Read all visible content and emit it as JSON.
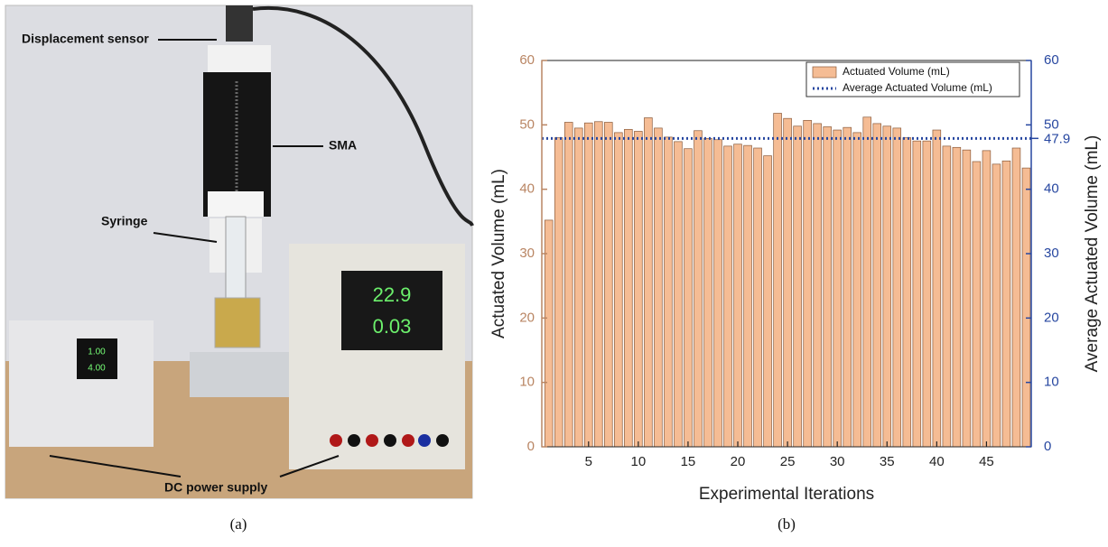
{
  "panel_a": {
    "labels": {
      "sensor": "Displacement sensor",
      "sma": "SMA",
      "syringe": "Syringe",
      "supply": "DC power supply"
    },
    "displays": {
      "voltage": "22.9",
      "current": "0.03",
      "small_voltage": "1.00",
      "small_current": "4.00"
    },
    "caption": "(a)"
  },
  "chart_data": {
    "type": "bar",
    "caption": "(b)",
    "xlabel": "Experimental Iterations",
    "ylabel": "Actuated Volume (mL)",
    "y2label": "Average Actuated Volume (mL)",
    "x": [
      1,
      2,
      3,
      4,
      5,
      6,
      7,
      8,
      9,
      10,
      11,
      12,
      13,
      14,
      15,
      16,
      17,
      18,
      19,
      20,
      21,
      22,
      23,
      24,
      25,
      26,
      27,
      28,
      29,
      30,
      31,
      32,
      33,
      34,
      35,
      36,
      37,
      38,
      39,
      40,
      41,
      42,
      43,
      44,
      45,
      46,
      47,
      48,
      49
    ],
    "series": [
      {
        "name": "Actuated Volume (mL)",
        "color": "#f5bc94",
        "values": [
          35.2,
          48.0,
          50.4,
          49.5,
          50.3,
          50.5,
          50.4,
          48.8,
          49.3,
          49.0,
          51.1,
          49.5,
          48.1,
          47.4,
          46.3,
          49.1,
          47.9,
          47.7,
          46.7,
          47.0,
          46.8,
          46.4,
          45.2,
          51.8,
          51.0,
          49.8,
          50.7,
          50.2,
          49.7,
          49.2,
          49.6,
          48.8,
          51.2,
          50.2,
          49.8,
          49.5,
          48.0,
          47.5,
          47.5,
          49.2,
          46.7,
          46.5,
          46.1,
          44.3,
          46.0,
          43.9,
          44.4,
          46.4,
          43.3
        ]
      }
    ],
    "average": {
      "name": "Average Actuated Volume (mL)",
      "color": "#2747a0",
      "value": 47.9
    },
    "xlim": [
      0.3,
      49.5
    ],
    "xticks": [
      5,
      10,
      15,
      20,
      25,
      30,
      35,
      40,
      45
    ],
    "ylim": [
      0,
      60
    ],
    "yticks": [
      0,
      10,
      20,
      30,
      40,
      50,
      60
    ],
    "y2lim": [
      0,
      60
    ],
    "y2ticks": [
      0,
      10,
      20,
      30,
      40,
      50,
      60
    ],
    "ycolor": "#b98563",
    "y2color": "#2747a0"
  }
}
